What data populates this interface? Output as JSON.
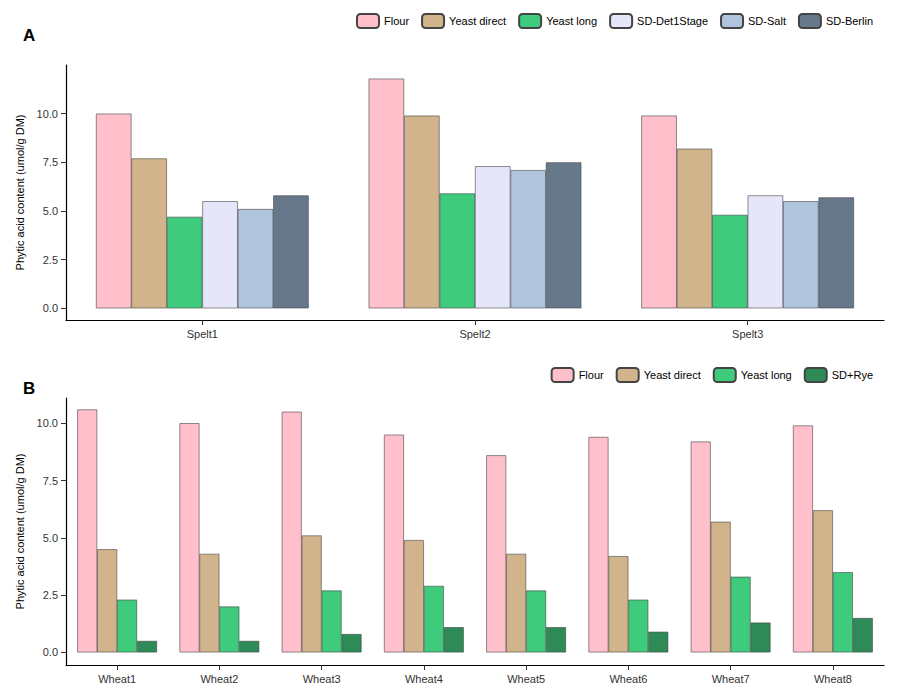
{
  "chart_data": [
    {
      "type": "bar",
      "title": "A",
      "y_label": "Phytic acid content (umol/g DM)",
      "categories": [
        "Spelt1",
        "Spelt2",
        "Spelt3"
      ],
      "series": [
        {
          "name": "Flour",
          "color": "#FFC0CB",
          "values": [
            10.0,
            11.8,
            9.9
          ]
        },
        {
          "name": "Yeast direct",
          "color": "#D2B48C",
          "values": [
            7.7,
            9.9,
            8.2
          ]
        },
        {
          "name": "Yeast long",
          "color": "#3FCB7C",
          "values": [
            4.7,
            5.9,
            4.8
          ]
        },
        {
          "name": "SD-Det1Stage",
          "color": "#E6E6FA",
          "values": [
            5.5,
            7.3,
            5.8
          ]
        },
        {
          "name": "SD-Salt",
          "color": "#B0C4DE",
          "values": [
            5.1,
            7.1,
            5.5
          ]
        },
        {
          "name": "SD-Berlin",
          "color": "#67788A",
          "values": [
            5.8,
            7.5,
            5.7
          ]
        }
      ],
      "ylim": [
        -0.6,
        12.5
      ],
      "yticks": [
        {
          "value": 0,
          "label": "0.0"
        },
        {
          "value": 2.5,
          "label": "2.5"
        },
        {
          "value": 5,
          "label": "5.0"
        },
        {
          "value": 7.5,
          "label": "7.5"
        },
        {
          "value": 10,
          "label": "10.0"
        }
      ],
      "grid": false,
      "legend": "top-right"
    },
    {
      "type": "bar",
      "title": "B",
      "y_label": "Phytic acid content (umol/g DM)",
      "categories": [
        "Wheat1",
        "Wheat2",
        "Wheat3",
        "Wheat4",
        "Wheat5",
        "Wheat6",
        "Wheat7",
        "Wheat8"
      ],
      "series": [
        {
          "name": "Flour",
          "color": "#FFC0CB",
          "values": [
            10.6,
            10.0,
            10.5,
            9.5,
            8.6,
            9.4,
            9.2,
            9.9
          ]
        },
        {
          "name": "Yeast direct",
          "color": "#D2B48C",
          "values": [
            4.5,
            4.3,
            5.1,
            4.9,
            4.3,
            4.2,
            5.7,
            6.2
          ]
        },
        {
          "name": "Yeast long",
          "color": "#3FCB7C",
          "values": [
            2.3,
            2.0,
            2.7,
            2.9,
            2.7,
            2.3,
            3.3,
            3.5
          ]
        },
        {
          "name": "SD+Rye",
          "color": "#2E8B57",
          "values": [
            0.5,
            0.5,
            0.8,
            1.1,
            1.1,
            0.9,
            1.3,
            1.5
          ]
        }
      ],
      "ylim": [
        -0.55,
        11.1
      ],
      "yticks": [
        {
          "value": 0,
          "label": "0.0"
        },
        {
          "value": 2.5,
          "label": "2.5"
        },
        {
          "value": 5,
          "label": "5.0"
        },
        {
          "value": 7.5,
          "label": "7.5"
        },
        {
          "value": 10,
          "label": "10.0"
        }
      ],
      "grid": false,
      "legend": "top-right"
    }
  ]
}
